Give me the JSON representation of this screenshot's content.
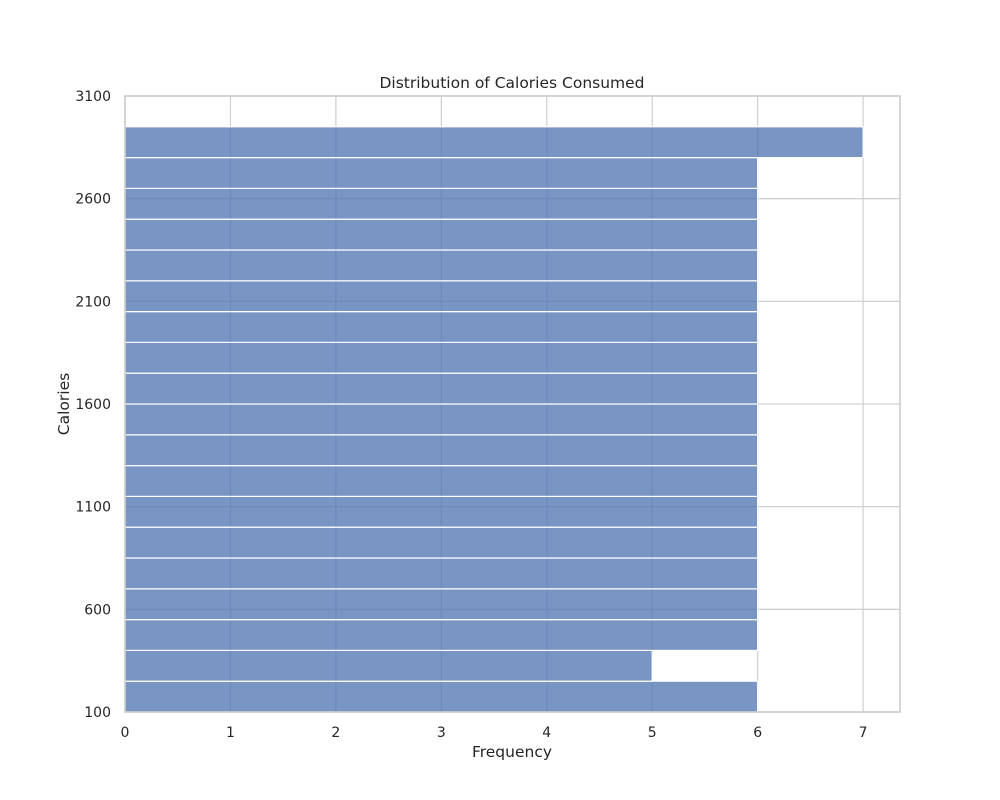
{
  "chart_data": {
    "type": "bar",
    "orientation": "horizontal",
    "title": "Distribution of Calories Consumed",
    "xlabel": "Frequency",
    "ylabel": "Calories",
    "xlim": [
      0,
      7.35
    ],
    "ylim": [
      100,
      3100
    ],
    "xticks": [
      "0",
      "1",
      "2",
      "3",
      "4",
      "5",
      "6",
      "7"
    ],
    "yticks": [
      "100",
      "600",
      "1100",
      "1600",
      "2100",
      "2600",
      "3100"
    ],
    "bins": [
      {
        "low": 100,
        "high": 250,
        "count": 6
      },
      {
        "low": 250,
        "high": 400,
        "count": 5
      },
      {
        "low": 400,
        "high": 550,
        "count": 6
      },
      {
        "low": 550,
        "high": 700,
        "count": 6
      },
      {
        "low": 700,
        "high": 850,
        "count": 6
      },
      {
        "low": 850,
        "high": 1000,
        "count": 6
      },
      {
        "low": 1000,
        "high": 1150,
        "count": 6
      },
      {
        "low": 1150,
        "high": 1300,
        "count": 6
      },
      {
        "low": 1300,
        "high": 1450,
        "count": 6
      },
      {
        "low": 1450,
        "high": 1600,
        "count": 6
      },
      {
        "low": 1600,
        "high": 1750,
        "count": 6
      },
      {
        "low": 1750,
        "high": 1900,
        "count": 6
      },
      {
        "low": 1900,
        "high": 2050,
        "count": 6
      },
      {
        "low": 2050,
        "high": 2200,
        "count": 6
      },
      {
        "low": 2200,
        "high": 2350,
        "count": 6
      },
      {
        "low": 2350,
        "high": 2500,
        "count": 6
      },
      {
        "low": 2500,
        "high": 2650,
        "count": 6
      },
      {
        "low": 2650,
        "high": 2800,
        "count": 6
      },
      {
        "low": 2800,
        "high": 2950,
        "count": 7
      }
    ],
    "bar_color": "#4c72b0",
    "bar_opacity": 0.75,
    "grid": true
  }
}
